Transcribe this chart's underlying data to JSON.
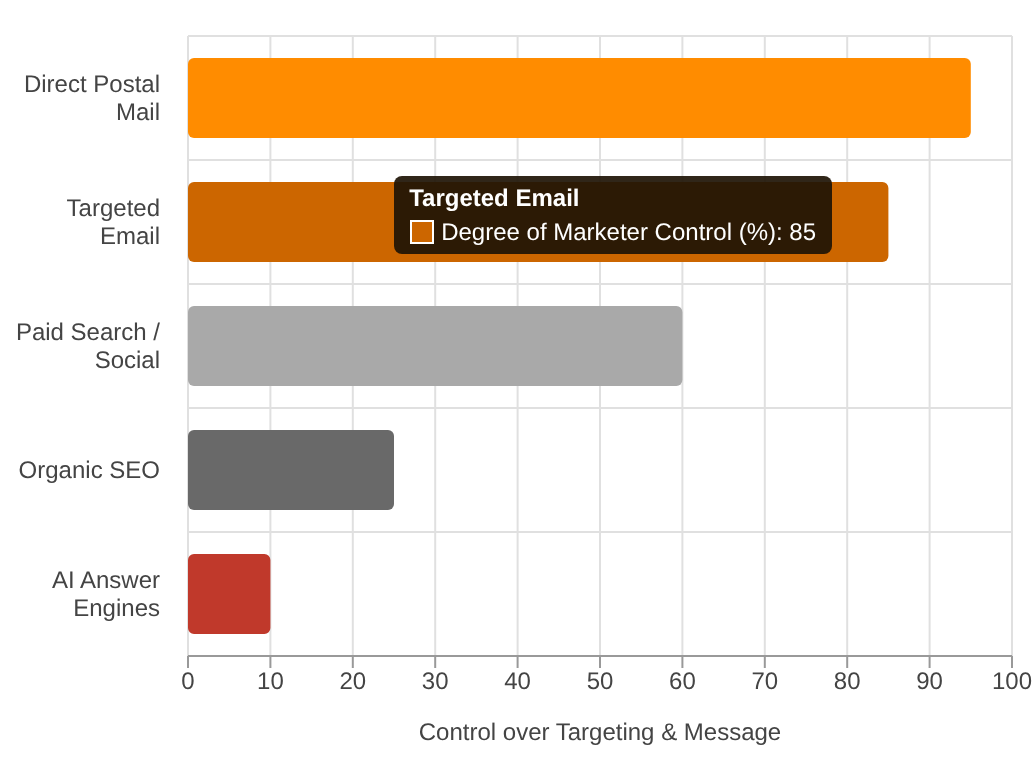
{
  "chart_data": {
    "type": "bar",
    "orientation": "horizontal",
    "xlabel": "Control over Targeting & Message",
    "categories": [
      "Direct Postal Mail",
      "Targeted Email",
      "Paid Search / Social",
      "Organic SEO",
      "AI Answer Engines"
    ],
    "values": [
      95,
      85,
      60,
      25,
      10
    ],
    "colors": [
      "#ff8c00",
      "#cc6600",
      "#a9a9a9",
      "#696969",
      "#c0392b"
    ],
    "xlim": [
      0,
      100
    ],
    "xticks": [
      0,
      10,
      20,
      30,
      40,
      50,
      60,
      70,
      80,
      90,
      100
    ],
    "grid": true,
    "annotations": [
      "Targeted Email",
      "Degree of Marketer Control (%): 85"
    ]
  }
}
